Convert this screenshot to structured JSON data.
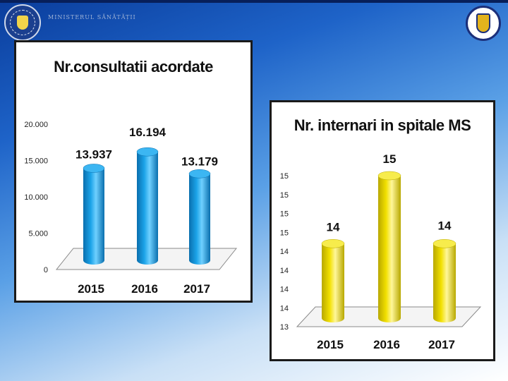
{
  "header": {
    "left_logo": "romania-government-seal-icon",
    "ministry_text": "MINISTERUL SĂNĂTĂȚII",
    "right_logo": "ministry-coat-of-arms-icon"
  },
  "colors": {
    "chart1_bar": "#1ba3e8",
    "chart2_bar": "#f2e000"
  },
  "chart_data": [
    {
      "type": "bar",
      "title": "Nr.consultatii acordate",
      "categories": [
        "2015",
        "2016",
        "2017"
      ],
      "values": [
        13937,
        16194,
        13179
      ],
      "data_labels": [
        "13.937",
        "16.194",
        "13.179"
      ],
      "y_ticks": [
        "0",
        "5.000",
        "10.000",
        "15.000",
        "20.000"
      ],
      "ylim": [
        0,
        20000
      ],
      "xlabel": "",
      "ylabel": "",
      "grid": false,
      "legend": "none"
    },
    {
      "type": "bar",
      "title": "Nr. internari in spitale MS",
      "categories": [
        "2015",
        "2016",
        "2017"
      ],
      "values": [
        14.1,
        15.0,
        14.1
      ],
      "data_labels": [
        "14",
        "15",
        "14"
      ],
      "y_ticks": [
        "13",
        "14",
        "14",
        "14",
        "14",
        "15",
        "15",
        "15",
        "15"
      ],
      "ylim": [
        13.0,
        15.0
      ],
      "xlabel": "",
      "ylabel": "",
      "grid": false,
      "legend": "none"
    }
  ]
}
